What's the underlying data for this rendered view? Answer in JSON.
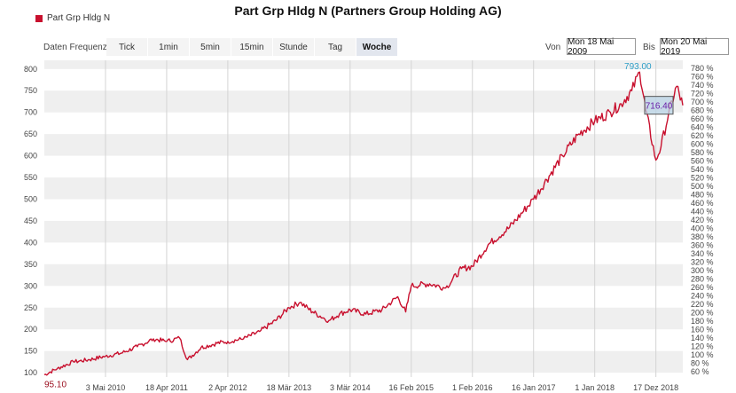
{
  "title": "Part Grp Hldg N (Partners Group Holding AG)",
  "legend": {
    "label": "Part Grp Hldg N",
    "color": "#c8102e"
  },
  "controls": {
    "frequency_label": "Daten Frequenz",
    "buttons": [
      "Tick",
      "1min",
      "5min",
      "15min",
      "Stunde",
      "Tag",
      "Woche"
    ],
    "active": "Woche",
    "from_label": "Von",
    "from_value": "Mon 18 Mai 2009",
    "to_label": "Bis",
    "to_value": "Mon 20 Mai 2019"
  },
  "chart_data": {
    "type": "line",
    "series": [
      {
        "name": "Part Grp Hldg N",
        "color": "#c8102e",
        "x": [
          "2009-05-18",
          "2009-08-01",
          "2009-11-01",
          "2010-02-01",
          "2010-05-03",
          "2010-08-01",
          "2010-11-01",
          "2011-02-01",
          "2011-04-18",
          "2011-07-01",
          "2011-08-15",
          "2011-11-01",
          "2012-02-01",
          "2012-04-02",
          "2012-07-01",
          "2012-10-01",
          "2013-01-01",
          "2013-03-18",
          "2013-05-20",
          "2013-08-01",
          "2013-11-01",
          "2014-01-01",
          "2014-03-03",
          "2014-06-01",
          "2014-09-01",
          "2014-12-01",
          "2015-01-15",
          "2015-02-16",
          "2015-06-01",
          "2015-09-01",
          "2015-12-01",
          "2016-02-01",
          "2016-05-01",
          "2016-09-01",
          "2017-01-16",
          "2017-04-01",
          "2017-07-01",
          "2017-10-01",
          "2018-01-01",
          "2018-04-01",
          "2018-06-01",
          "2018-08-01",
          "2018-09-15",
          "2018-10-20",
          "2018-12-17",
          "2019-01-15",
          "2019-03-01",
          "2019-04-15",
          "2019-05-20"
        ],
        "y": [
          95.1,
          110,
          125,
          130,
          138,
          145,
          160,
          178,
          172,
          180,
          130,
          158,
          168,
          172,
          178,
          195,
          220,
          250,
          262,
          240,
          220,
          235,
          245,
          235,
          245,
          275,
          240,
          300,
          305,
          295,
          340,
          345,
          395,
          435,
          500,
          545,
          600,
          650,
          680,
          700,
          720,
          750,
          793,
          705,
          590,
          620,
          700,
          760,
          716.4
        ]
      }
    ],
    "ylim": [
      90,
      820
    ],
    "yticks": [
      100,
      150,
      200,
      250,
      300,
      350,
      400,
      450,
      500,
      550,
      600,
      650,
      700,
      750,
      800
    ],
    "y2ticks": [
      "60 %",
      "80 %",
      "100 %",
      "120 %",
      "140 %",
      "160 %",
      "180 %",
      "200 %",
      "220 %",
      "240 %",
      "260 %",
      "280 %",
      "300 %",
      "320 %",
      "340 %",
      "360 %",
      "380 %",
      "400 %",
      "420 %",
      "440 %",
      "460 %",
      "480 %",
      "500 %",
      "520 %",
      "540 %",
      "560 %",
      "580 %",
      "600 %",
      "620 %",
      "640 %",
      "660 %",
      "680 %",
      "700 %",
      "720 %",
      "740 %",
      "760 %",
      "780 %"
    ],
    "xticks": [
      {
        "date": "2010-05-03",
        "label": "3 Mai 2010"
      },
      {
        "date": "2011-04-18",
        "label": "18 Apr 2011"
      },
      {
        "date": "2012-04-02",
        "label": "2 Apr 2012"
      },
      {
        "date": "2013-03-18",
        "label": "18 Mär 2013"
      },
      {
        "date": "2014-03-03",
        "label": "3 Mär 2014"
      },
      {
        "date": "2015-02-16",
        "label": "16 Feb 2015"
      },
      {
        "date": "2016-02-01",
        "label": "1 Feb 2016"
      },
      {
        "date": "2017-01-16",
        "label": "16 Jan 2017"
      },
      {
        "date": "2018-01-01",
        "label": "1 Jan 2018"
      },
      {
        "date": "2018-12-17",
        "label": "17 Dez 2018"
      }
    ],
    "xrange": [
      "2009-05-18",
      "2019-05-20"
    ],
    "annotations": {
      "min_label": "95.10",
      "max_label": "793.00",
      "last_label": "716.40"
    }
  }
}
